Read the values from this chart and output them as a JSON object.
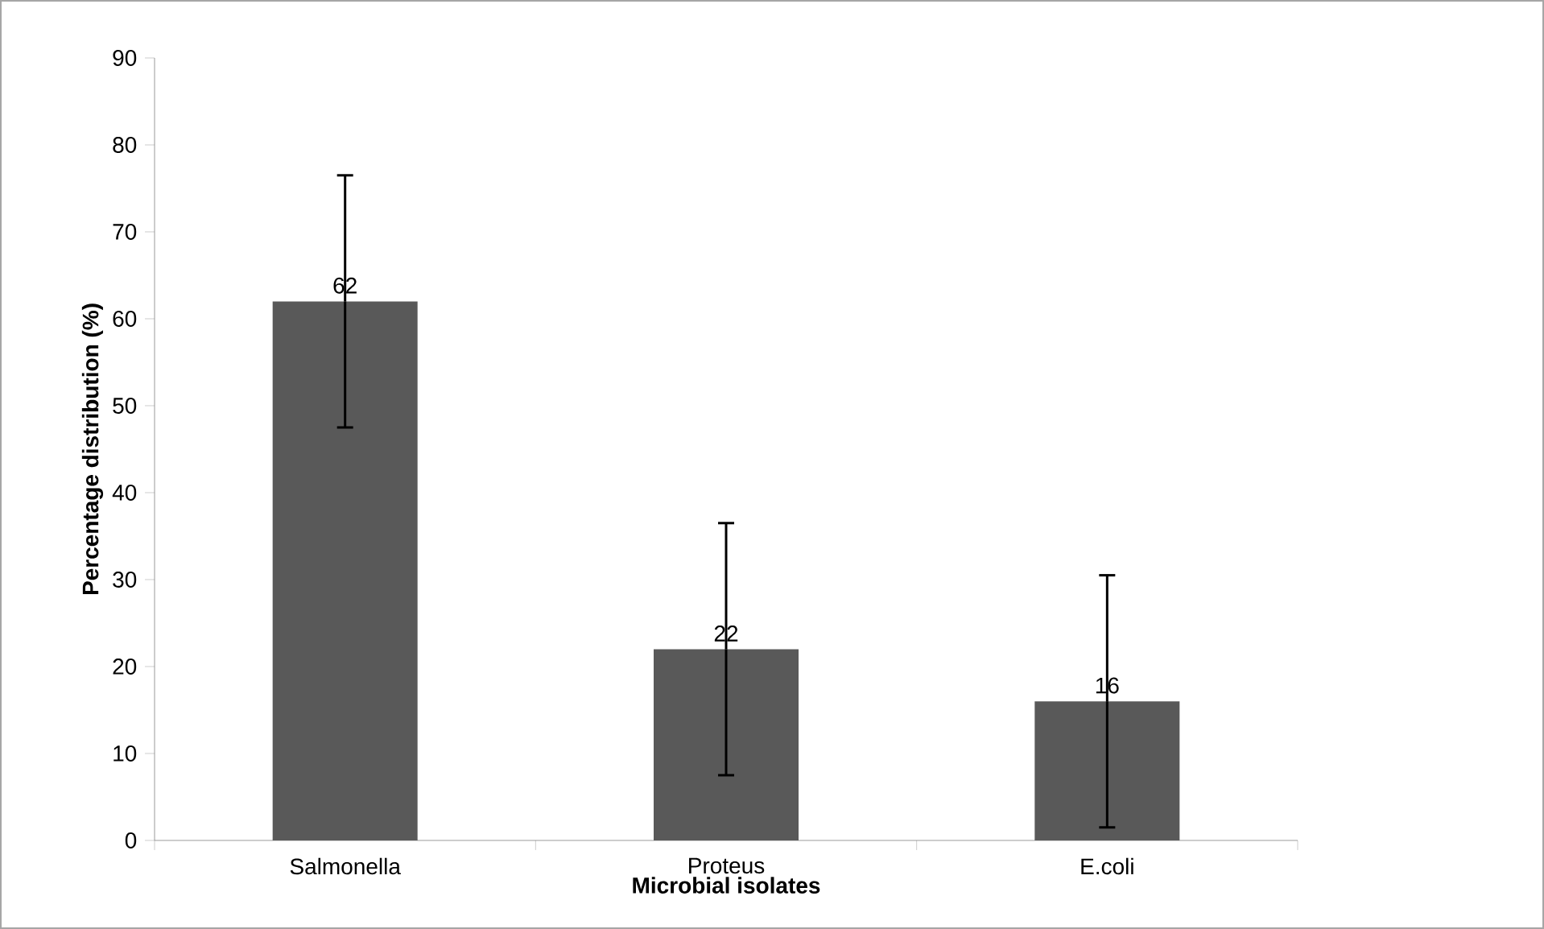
{
  "chart_data": {
    "type": "bar",
    "xlabel": "Microbial isolates",
    "ylabel": "Percentage distribution (%)",
    "categories": [
      "Salmonella",
      "Proteus",
      "E.coli"
    ],
    "values": [
      62,
      22,
      16
    ],
    "errors": [
      14.5,
      14.5,
      14.5
    ],
    "color": "#595959",
    "ylim": [
      0,
      90
    ],
    "yticks": [
      0,
      10,
      20,
      30,
      40,
      50,
      60,
      70,
      80,
      90
    ],
    "data_labels": true,
    "grid": false
  }
}
